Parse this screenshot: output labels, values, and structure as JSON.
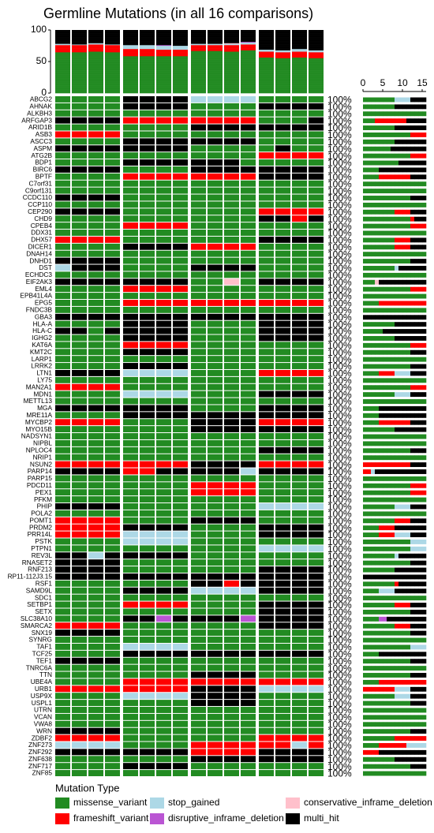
{
  "chart_data": {
    "type": "oncoplot",
    "title": "Germline Mutations (in all 16 comparisons)",
    "genes": [
      "ABCG2",
      "AHNAK",
      "ALKBH3",
      "ARFGAP3",
      "ARID1B",
      "ASB3",
      "ASCC3",
      "ASPM",
      "ATG2B",
      "BDP1",
      "BIRC6",
      "BPTF",
      "C7orf31",
      "C9orf131",
      "CCDC110",
      "CCP110",
      "CEP290",
      "CHD9",
      "CPEB4",
      "DDX31",
      "DHX57",
      "DICER1",
      "DNAH14",
      "DNHD1",
      "DST",
      "ECHDC3",
      "EIF2AK3",
      "EML4",
      "EPB41L4A",
      "EPG5",
      "FNDC3B",
      "GBA3",
      "HLA-A",
      "HLA-C",
      "IGHG2",
      "KAT6A",
      "KMT2C",
      "LARP1",
      "LRRK2",
      "LTN1",
      "LY75",
      "MAN2A1",
      "MDN1",
      "METTL13",
      "MGA",
      "MRE11A",
      "MYCBP2",
      "MYO15B",
      "NADSYN1",
      "NIPBL",
      "NPLOC4",
      "NRIP1",
      "NSUN2",
      "PARP14",
      "PARP15",
      "PDCD11",
      "PEX1",
      "PFKM",
      "PHIP",
      "POLA2",
      "POMT1",
      "PRDM2",
      "PRR14L",
      "PSTK",
      "PTPN1",
      "REV3L",
      "RNASET2",
      "RNF213",
      "RP11-112J3.15",
      "RSF1",
      "SAMD9L",
      "SDC1",
      "SETBP1",
      "SETX",
      "SLC38A10",
      "SMARCA2",
      "SNX19",
      "SYNRG",
      "TAF1",
      "TCF25",
      "TEF1",
      "TNRC6A",
      "TTN",
      "UBE4A",
      "URB1",
      "USP9X",
      "USPL1",
      "UTRN",
      "VCAN",
      "VWA8",
      "WRN",
      "ZDBF2",
      "ZNF273",
      "ZNF292",
      "ZNF638",
      "ZNF717",
      "ZNF85"
    ],
    "matrix": [
      "0000555522220000",
      "0000555500005555",
      "0000000000000000",
      "5555111111110005",
      "0000000055555555",
      "1111000000000000",
      "0000555555550000",
      "5555555500000500",
      "0000000000001111",
      "0000555555500000",
      "5555000055555555",
      "0000111111115555",
      "0000000000000000",
      "0000000000000000",
      "5555000000000000",
      "0000000000000000",
      "5555000000001111",
      "0000000000005515",
      "0000111100000000",
      "0000000000000000",
      "1111000000005555",
      "0000555511110000",
      "0000000000000000",
      "5555000000000000",
      "2555000055550000",
      "0000000000000000",
      "5555555500405555",
      "0000111100000000",
      "0000000000000000",
      "0000111111111111",
      "0000000000000000",
      "5555555555555555",
      "0000555500005555",
      "5505555500005555",
      "0000555500005555",
      "0000111100000000",
      "0000555500000000",
      "0000000000000000",
      "0000555500000000",
      "5555222200001111",
      "0000000000000000",
      "1111000000000000",
      "0000222200005555",
      "0000000000000000",
      "5555555500005555",
      "0000555555555555",
      "1111000055551111",
      "0000000055555555",
      "0000000000000000",
      "0000000000000000",
      "0000000000005555",
      "0000000000000000",
      "1111111155551111",
      "5555115555525555",
      "0000000000000000",
      "0000000011110000",
      "0000000011110000",
      "0000000000000000",
      "5555000000002222",
      "0000000000000000",
      "1111000055550000",
      "1111555500005555",
      "1111222200005555",
      "0000222200000000",
      "0000000000002222",
      "5525555500000000",
      "5555000000000000",
      "5555000000005555",
      "5555555555555555",
      "0000000055155555",
      "0000555522225555",
      "0000000000000000",
      "0000111100005555",
      "0000000000005555",
      "0000553555535555",
      "1111000000005555",
      "5555000000000000",
      "0000000000000000",
      "0000222200000000",
      "0000555555555555",
      "5555000000000000",
      "0000000000000000",
      "0000000055550000",
      "0000111111111111",
      "1111111155552222",
      "0000222255550000",
      "0000000055550000",
      "0000000000000000",
      "0000000000000000",
      "0000000000000000",
      "5555000000000000",
      "1111000000001111",
      "2222000011111121",
      "5555555511115555",
      "0000000055555555",
      "0000555500000000",
      "0000000000000000"
    ],
    "percent_label": "100%",
    "ylim": [
      0,
      100
    ],
    "yticks": [
      0,
      50,
      100
    ],
    "xlim": [
      0,
      16
    ],
    "xticks": [
      0,
      5,
      10,
      15
    ],
    "legend_title": "Mutation Type",
    "mutation_types": [
      {
        "name": "missense_variant",
        "color": "#228b22"
      },
      {
        "name": "frameshift_variant",
        "color": "#ff0000"
      },
      {
        "name": "stop_gained",
        "color": "#add8e6"
      },
      {
        "name": "disruptive_inframe_deletion",
        "color": "#ba55d3"
      },
      {
        "name": "conservative_inframe_deletion",
        "color": "#ffc0cb"
      },
      {
        "name": "multi_hit",
        "color": "#000000"
      }
    ]
  }
}
